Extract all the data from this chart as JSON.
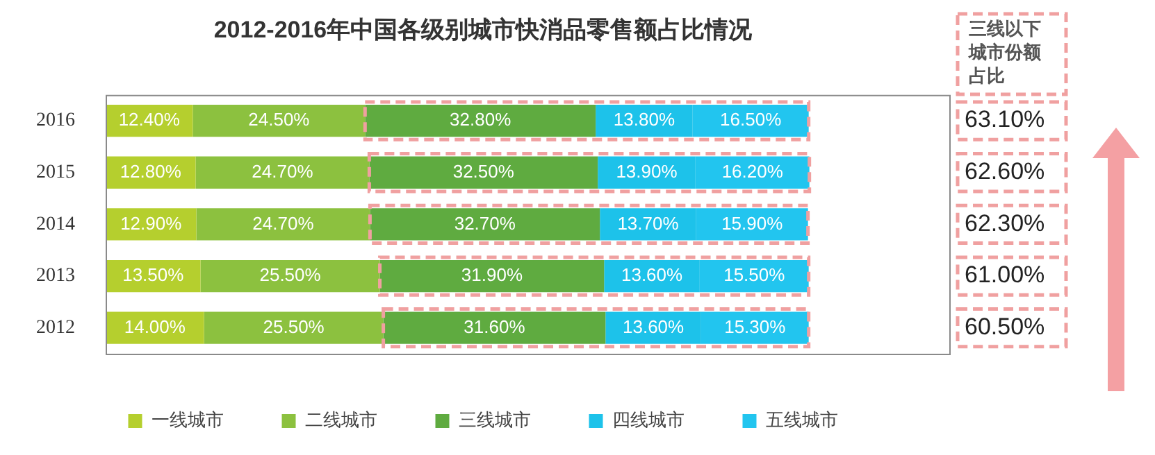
{
  "chart_data": {
    "type": "bar",
    "orientation": "horizontal",
    "stacked": true,
    "legend": "bottom",
    "title": "2012-2016年中国各级别城市快消品零售额占比情况",
    "categories": [
      "2016",
      "2015",
      "2014",
      "2013",
      "2012"
    ],
    "series": [
      {
        "name": "一线城市",
        "color": "#b5cf2e",
        "values": [
          12.4,
          12.8,
          12.9,
          13.5,
          14.0
        ],
        "value_labels": [
          "12.40%",
          "12.80%",
          "12.90%",
          "13.50%",
          "14.00%"
        ]
      },
      {
        "name": "二线城市",
        "color": "#8cc13f",
        "values": [
          24.5,
          24.7,
          24.7,
          25.5,
          25.5
        ],
        "value_labels": [
          "24.50%",
          "24.70%",
          "24.70%",
          "25.50%",
          "25.50%"
        ]
      },
      {
        "name": "三线城市",
        "color": "#5fab40",
        "values": [
          32.8,
          32.5,
          32.7,
          31.9,
          31.6
        ],
        "value_labels": [
          "32.80%",
          "32.50%",
          "32.70%",
          "31.90%",
          "31.60%"
        ]
      },
      {
        "name": "四线城市",
        "color": "#1dc2ea",
        "values": [
          13.8,
          13.9,
          13.7,
          13.6,
          13.6
        ],
        "value_labels": [
          "13.80%",
          "13.90%",
          "13.70%",
          "13.60%",
          "13.60%"
        ]
      },
      {
        "name": "五线城市",
        "color": "#22c5ef",
        "values": [
          16.5,
          16.2,
          15.9,
          15.5,
          15.3
        ],
        "value_labels": [
          "16.50%",
          "16.20%",
          "15.90%",
          "15.50%",
          "15.30%"
        ]
      }
    ],
    "annotations": [
      "三线以下城市份额占比",
      "63.10%",
      "62.60%",
      "62.30%",
      "61.00%",
      "60.50%"
    ]
  }
}
